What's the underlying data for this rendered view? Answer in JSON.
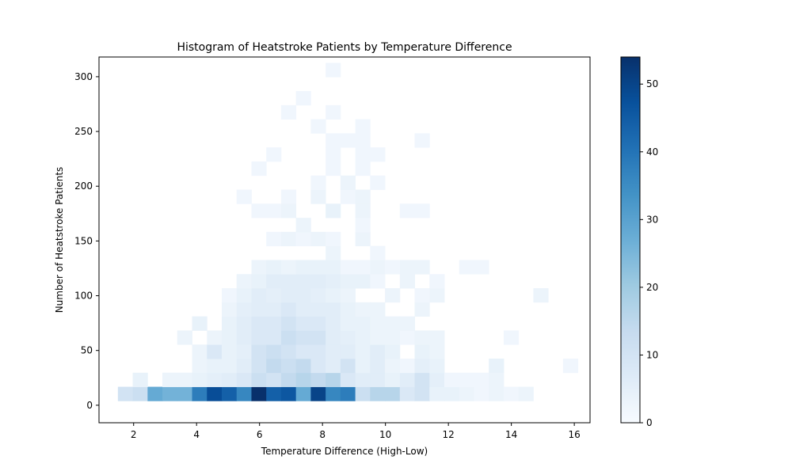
{
  "chart_data": {
    "type": "heatmap",
    "title": "Histogram of Heatstroke Patients by Temperature Difference",
    "xlabel": "Temperature Difference (High-Low)",
    "ylabel": "Number of Heatstroke Patients",
    "xlim": [
      0.9,
      16.5
    ],
    "ylim": [
      -16,
      318
    ],
    "x_bin": [
      1.5,
      0.4714
    ],
    "y_bin": [
      4.0,
      12.86
    ],
    "colormap": "Blues",
    "colorbar": {
      "min": 0,
      "max": 54,
      "ticks": [
        0,
        10,
        20,
        30,
        40,
        50
      ]
    },
    "xticks": [
      2,
      4,
      6,
      8,
      10,
      12,
      14,
      16
    ],
    "yticks": [
      0,
      50,
      100,
      150,
      200,
      250,
      300
    ],
    "cells": [
      [
        0,
        0,
        10
      ],
      [
        1,
        0,
        12
      ],
      [
        2,
        0,
        28
      ],
      [
        3,
        0,
        26
      ],
      [
        4,
        0,
        26
      ],
      [
        5,
        0,
        38
      ],
      [
        6,
        0,
        48
      ],
      [
        7,
        0,
        44
      ],
      [
        8,
        0,
        36
      ],
      [
        9,
        0,
        54
      ],
      [
        10,
        0,
        44
      ],
      [
        11,
        0,
        46
      ],
      [
        12,
        0,
        28
      ],
      [
        13,
        0,
        50
      ],
      [
        14,
        0,
        36
      ],
      [
        15,
        0,
        38
      ],
      [
        16,
        0,
        12
      ],
      [
        17,
        0,
        16
      ],
      [
        18,
        0,
        16
      ],
      [
        19,
        0,
        8
      ],
      [
        20,
        0,
        10
      ],
      [
        21,
        0,
        4
      ],
      [
        22,
        0,
        4
      ],
      [
        23,
        0,
        3
      ],
      [
        24,
        0,
        2
      ],
      [
        25,
        0,
        3
      ],
      [
        26,
        0,
        2
      ],
      [
        27,
        0,
        3
      ],
      [
        1,
        1,
        4
      ],
      [
        3,
        1,
        3
      ],
      [
        4,
        1,
        3
      ],
      [
        5,
        1,
        4
      ],
      [
        6,
        1,
        5
      ],
      [
        7,
        1,
        6
      ],
      [
        8,
        1,
        8
      ],
      [
        9,
        1,
        12
      ],
      [
        10,
        1,
        10
      ],
      [
        11,
        1,
        14
      ],
      [
        12,
        1,
        16
      ],
      [
        13,
        1,
        14
      ],
      [
        14,
        1,
        16
      ],
      [
        15,
        1,
        8
      ],
      [
        16,
        1,
        6
      ],
      [
        17,
        1,
        6
      ],
      [
        18,
        1,
        4
      ],
      [
        19,
        1,
        6
      ],
      [
        20,
        1,
        10
      ],
      [
        21,
        1,
        5
      ],
      [
        22,
        1,
        2
      ],
      [
        23,
        1,
        2
      ],
      [
        24,
        1,
        2
      ],
      [
        25,
        1,
        3
      ],
      [
        5,
        2,
        3
      ],
      [
        6,
        2,
        4
      ],
      [
        7,
        2,
        4
      ],
      [
        8,
        2,
        6
      ],
      [
        9,
        2,
        10
      ],
      [
        10,
        2,
        14
      ],
      [
        11,
        2,
        12
      ],
      [
        12,
        2,
        14
      ],
      [
        13,
        2,
        8
      ],
      [
        14,
        2,
        6
      ],
      [
        15,
        2,
        10
      ],
      [
        16,
        2,
        4
      ],
      [
        17,
        2,
        6
      ],
      [
        18,
        2,
        3
      ],
      [
        19,
        2,
        2
      ],
      [
        20,
        2,
        5
      ],
      [
        21,
        2,
        4
      ],
      [
        25,
        2,
        4
      ],
      [
        30,
        2,
        2
      ],
      [
        5,
        3,
        3
      ],
      [
        6,
        3,
        8
      ],
      [
        7,
        3,
        4
      ],
      [
        8,
        3,
        5
      ],
      [
        9,
        3,
        10
      ],
      [
        10,
        3,
        12
      ],
      [
        11,
        3,
        10
      ],
      [
        12,
        3,
        8
      ],
      [
        13,
        3,
        8
      ],
      [
        14,
        3,
        6
      ],
      [
        15,
        3,
        6
      ],
      [
        16,
        3,
        4
      ],
      [
        17,
        3,
        6
      ],
      [
        18,
        3,
        4
      ],
      [
        20,
        3,
        4
      ],
      [
        21,
        3,
        3
      ],
      [
        4,
        4,
        3
      ],
      [
        6,
        4,
        3
      ],
      [
        7,
        4,
        4
      ],
      [
        8,
        4,
        6
      ],
      [
        9,
        4,
        8
      ],
      [
        10,
        4,
        8
      ],
      [
        11,
        4,
        12
      ],
      [
        12,
        4,
        10
      ],
      [
        13,
        4,
        10
      ],
      [
        14,
        4,
        6
      ],
      [
        15,
        4,
        5
      ],
      [
        16,
        4,
        4
      ],
      [
        17,
        4,
        3
      ],
      [
        18,
        4,
        3
      ],
      [
        19,
        4,
        2
      ],
      [
        20,
        4,
        3
      ],
      [
        21,
        4,
        3
      ],
      [
        26,
        4,
        2
      ],
      [
        5,
        5,
        4
      ],
      [
        7,
        5,
        4
      ],
      [
        8,
        5,
        6
      ],
      [
        9,
        5,
        8
      ],
      [
        10,
        5,
        8
      ],
      [
        11,
        5,
        10
      ],
      [
        12,
        5,
        8
      ],
      [
        13,
        5,
        8
      ],
      [
        14,
        5,
        6
      ],
      [
        15,
        5,
        4
      ],
      [
        16,
        5,
        4
      ],
      [
        17,
        5,
        3
      ],
      [
        18,
        5,
        3
      ],
      [
        19,
        5,
        3
      ],
      [
        7,
        6,
        3
      ],
      [
        8,
        6,
        5
      ],
      [
        9,
        6,
        6
      ],
      [
        10,
        6,
        6
      ],
      [
        11,
        6,
        8
      ],
      [
        12,
        6,
        6
      ],
      [
        13,
        6,
        6
      ],
      [
        14,
        6,
        6
      ],
      [
        15,
        6,
        4
      ],
      [
        16,
        6,
        3
      ],
      [
        17,
        6,
        3
      ],
      [
        20,
        6,
        3
      ],
      [
        7,
        7,
        2
      ],
      [
        8,
        7,
        4
      ],
      [
        9,
        7,
        6
      ],
      [
        10,
        7,
        5
      ],
      [
        11,
        7,
        6
      ],
      [
        12,
        7,
        6
      ],
      [
        13,
        7,
        5
      ],
      [
        14,
        7,
        4
      ],
      [
        15,
        7,
        3
      ],
      [
        18,
        7,
        3
      ],
      [
        20,
        7,
        2
      ],
      [
        21,
        7,
        3
      ],
      [
        28,
        7,
        3
      ],
      [
        8,
        8,
        3
      ],
      [
        9,
        8,
        4
      ],
      [
        10,
        8,
        6
      ],
      [
        11,
        8,
        6
      ],
      [
        12,
        8,
        6
      ],
      [
        13,
        8,
        6
      ],
      [
        14,
        8,
        5
      ],
      [
        15,
        8,
        4
      ],
      [
        16,
        8,
        4
      ],
      [
        17,
        8,
        2
      ],
      [
        19,
        8,
        3
      ],
      [
        21,
        8,
        2
      ],
      [
        9,
        9,
        3
      ],
      [
        10,
        9,
        4
      ],
      [
        11,
        9,
        3
      ],
      [
        12,
        9,
        4
      ],
      [
        13,
        9,
        4
      ],
      [
        14,
        9,
        4
      ],
      [
        15,
        9,
        2
      ],
      [
        16,
        9,
        2
      ],
      [
        17,
        9,
        3
      ],
      [
        18,
        9,
        2
      ],
      [
        19,
        9,
        3
      ],
      [
        20,
        9,
        3
      ],
      [
        23,
        9,
        2
      ],
      [
        24,
        9,
        2
      ],
      [
        14,
        10,
        3
      ],
      [
        17,
        10,
        2
      ],
      [
        10,
        11,
        2
      ],
      [
        11,
        11,
        3
      ],
      [
        12,
        11,
        2
      ],
      [
        13,
        11,
        3
      ],
      [
        14,
        11,
        2
      ],
      [
        16,
        11,
        3
      ],
      [
        12,
        12,
        3
      ],
      [
        16,
        12,
        2
      ],
      [
        9,
        13,
        2
      ],
      [
        10,
        13,
        2
      ],
      [
        11,
        13,
        3
      ],
      [
        14,
        13,
        4
      ],
      [
        16,
        13,
        3
      ],
      [
        19,
        13,
        2
      ],
      [
        20,
        13,
        2
      ],
      [
        8,
        14,
        2
      ],
      [
        11,
        14,
        2
      ],
      [
        13,
        14,
        3
      ],
      [
        15,
        14,
        2
      ],
      [
        16,
        14,
        3
      ],
      [
        13,
        15,
        2
      ],
      [
        15,
        15,
        3
      ],
      [
        17,
        15,
        2
      ],
      [
        9,
        16,
        2
      ],
      [
        14,
        16,
        2
      ],
      [
        16,
        16,
        2
      ],
      [
        10,
        17,
        2
      ],
      [
        14,
        17,
        2
      ],
      [
        16,
        17,
        2
      ],
      [
        17,
        17,
        2
      ],
      [
        14,
        18,
        2
      ],
      [
        15,
        18,
        2
      ],
      [
        16,
        18,
        2
      ],
      [
        20,
        18,
        2
      ],
      [
        13,
        19,
        2
      ],
      [
        16,
        19,
        2
      ],
      [
        11,
        20,
        2
      ],
      [
        14,
        20,
        2
      ],
      [
        12,
        21,
        2
      ],
      [
        14,
        23,
        2
      ]
    ]
  }
}
